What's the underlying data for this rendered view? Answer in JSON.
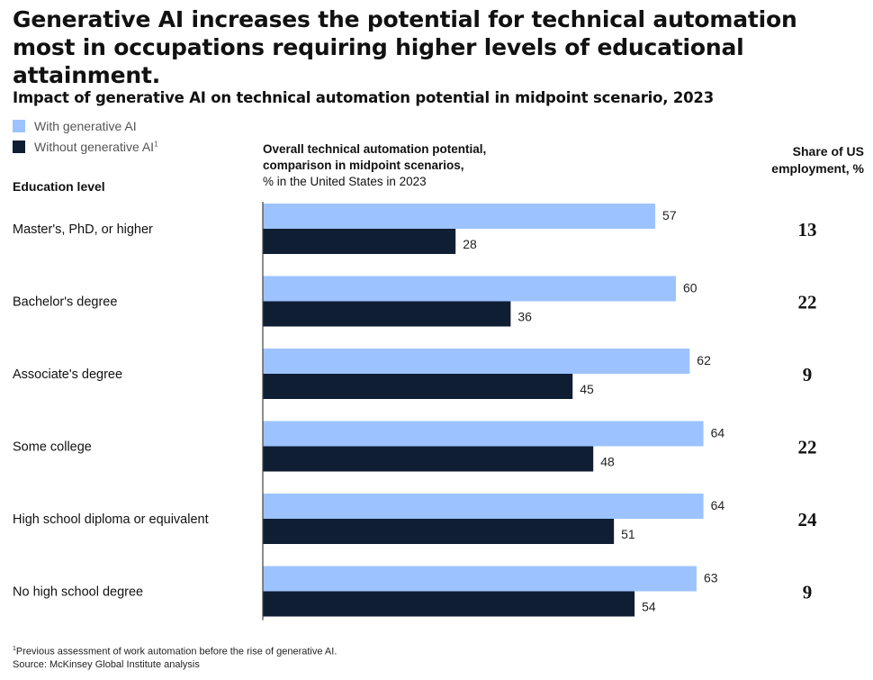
{
  "headline": "Generative AI increases the potential for technical automation most in occupations requiring higher levels of educational attainment.",
  "subtitle": "Impact of generative AI on technical automation potential in midpoint scenario, 2023",
  "legend": {
    "with_label": "With generative AI",
    "without_label": "Without generative AI",
    "without_sup": "1"
  },
  "columns": {
    "left_header": "Education level",
    "mid_header_bold1": "Overall technical automation potential,",
    "mid_header_bold2": "comparison in midpoint scenarios,",
    "mid_header_regular": "% in the United States in 2023",
    "right_header_line1": "Share of US",
    "right_header_line2": "employment, %"
  },
  "footnote": {
    "sup": "1",
    "note": "Previous assessment of work automation before the rise of generative AI.",
    "source": "Source: McKinsey Global Institute analysis"
  },
  "colors": {
    "with": "#9cc3ff",
    "without": "#0f1e33",
    "axis": "#444444"
  },
  "chart_data": {
    "type": "bar",
    "orientation": "horizontal",
    "categories": [
      "Master's, PhD, or higher",
      "Bachelor's degree",
      "Associate's degree",
      "Some college",
      "High school diploma or equivalent",
      "No high school degree"
    ],
    "series": [
      {
        "name": "With generative AI",
        "values": [
          57,
          60,
          62,
          64,
          64,
          63
        ]
      },
      {
        "name": "Without generative AI",
        "values": [
          28,
          36,
          45,
          48,
          51,
          54
        ]
      }
    ],
    "share_of_us_employment": [
      13,
      22,
      9,
      22,
      24,
      9
    ],
    "xlim": [
      0,
      100
    ],
    "title": "Overall technical automation potential, comparison in midpoint scenarios, % in the United States in 2023",
    "xlabel": "",
    "ylabel": "Education level",
    "legend_position": "top-left"
  }
}
